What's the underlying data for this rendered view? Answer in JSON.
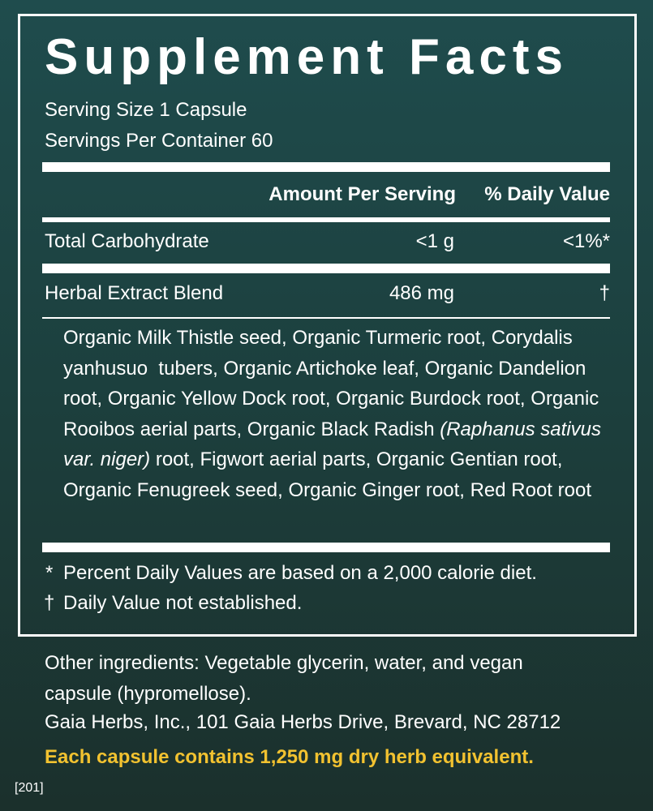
{
  "title": "Supplement Facts",
  "serving_size": "Serving Size 1 Capsule",
  "servings_per_container": "Servings Per Container 60",
  "header": {
    "amount": "Amount Per Serving",
    "daily_value": "% Daily Value"
  },
  "rows": [
    {
      "name": "Total Carbohydrate",
      "amount": "<1 g",
      "daily_value": "<1%*"
    },
    {
      "name": "Herbal Extract Blend",
      "amount": "486 mg",
      "daily_value": "†"
    }
  ],
  "blend_ingredients": [
    {
      "text": "Organic Milk Thistle seed, Organic Turmeric root, Corydalis yanhusuo  tubers, Organic Artichoke leaf, Organic Dandelion root, Organic Yellow Dock root, Organic Burdock root, Organic Rooibos aerial parts, Organic Black Radish ",
      "italic": false
    },
    {
      "text": "(Raphanus sativus var. niger)",
      "italic": true
    },
    {
      "text": " root, Figwort aerial parts, Organic Gentian root, Organic Fenugreek seed, Organic Ginger root, Red Root root",
      "italic": false
    }
  ],
  "footnotes": [
    {
      "symbol": "*",
      "text": "Percent Daily Values are based on a 2,000 calorie diet."
    },
    {
      "symbol": "†",
      "text": "Daily Value not established."
    }
  ],
  "other_ingredients": "Other ingredients: Vegetable glycerin, water, and vegan capsule (hypromellose).",
  "manufacturer": "Gaia Herbs, Inc., 101 Gaia Herbs Drive, Brevard, NC 28712",
  "equivalent": "Each capsule contains 1,250 mg dry herb equivalent.",
  "code": "[201]"
}
